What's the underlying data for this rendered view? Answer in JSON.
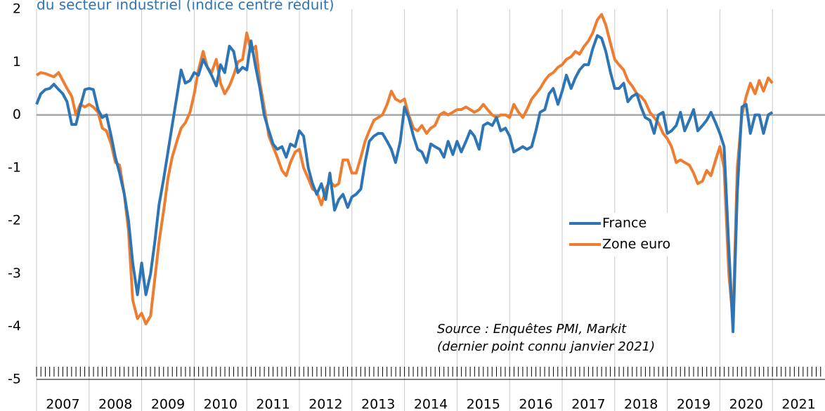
{
  "chart_data": {
    "type": "line",
    "title": "du secteur industriel (indice centré réduit)",
    "annotations": [
      "Source : Enquêtes PMI, Markit",
      "(dernier point connu janvier 2021)"
    ],
    "legend": "inside",
    "grid": true,
    "xlim": [
      2007,
      2022
    ],
    "ylim": [
      -5,
      2
    ],
    "yticks": [
      -5,
      -4,
      -3,
      -2,
      -1,
      0,
      1,
      2
    ],
    "xgrid": [
      2007,
      2008,
      2009,
      2010,
      2011,
      2012,
      2013,
      2014,
      2015,
      2016,
      2017,
      2018,
      2019,
      2020,
      2021
    ],
    "xticks": [
      {
        "value": 2007.5,
        "label": "2007"
      },
      {
        "value": 2008.5,
        "label": "2008"
      },
      {
        "value": 2009.5,
        "label": "2009"
      },
      {
        "value": 2010.5,
        "label": "2010"
      },
      {
        "value": 2011.5,
        "label": "2011"
      },
      {
        "value": 2012.5,
        "label": "2012"
      },
      {
        "value": 2013.5,
        "label": "2013"
      },
      {
        "value": 2014.5,
        "label": "2014"
      },
      {
        "value": 2015.5,
        "label": "2015"
      },
      {
        "value": 2016.5,
        "label": "2016"
      },
      {
        "value": 2017.5,
        "label": "2017"
      },
      {
        "value": 2018.5,
        "label": "2018"
      },
      {
        "value": 2019.5,
        "label": "2019"
      },
      {
        "value": 2020.5,
        "label": "2020"
      },
      {
        "value": 2021.5,
        "label": "2021"
      }
    ],
    "x": [
      2007,
      2007.08,
      2007.17,
      2007.25,
      2007.33,
      2007.42,
      2007.5,
      2007.58,
      2007.67,
      2007.75,
      2007.83,
      2007.92,
      2008,
      2008.08,
      2008.17,
      2008.25,
      2008.33,
      2008.42,
      2008.5,
      2008.58,
      2008.67,
      2008.75,
      2008.83,
      2008.92,
      2009,
      2009.08,
      2009.17,
      2009.25,
      2009.33,
      2009.42,
      2009.5,
      2009.58,
      2009.67,
      2009.75,
      2009.83,
      2009.92,
      2010,
      2010.08,
      2010.17,
      2010.25,
      2010.33,
      2010.42,
      2010.5,
      2010.58,
      2010.67,
      2010.75,
      2010.83,
      2010.92,
      2011,
      2011.08,
      2011.17,
      2011.25,
      2011.33,
      2011.42,
      2011.5,
      2011.58,
      2011.67,
      2011.75,
      2011.83,
      2011.92,
      2012,
      2012.08,
      2012.17,
      2012.25,
      2012.33,
      2012.42,
      2012.5,
      2012.58,
      2012.67,
      2012.75,
      2012.83,
      2012.92,
      2013,
      2013.08,
      2013.17,
      2013.25,
      2013.33,
      2013.42,
      2013.5,
      2013.58,
      2013.67,
      2013.75,
      2013.83,
      2013.92,
      2014,
      2014.08,
      2014.17,
      2014.25,
      2014.33,
      2014.42,
      2014.5,
      2014.58,
      2014.67,
      2014.75,
      2014.83,
      2014.92,
      2015,
      2015.08,
      2015.17,
      2015.25,
      2015.33,
      2015.42,
      2015.5,
      2015.58,
      2015.67,
      2015.75,
      2015.83,
      2015.92,
      2016,
      2016.08,
      2016.17,
      2016.25,
      2016.33,
      2016.42,
      2016.5,
      2016.58,
      2016.67,
      2016.75,
      2016.83,
      2016.92,
      2017,
      2017.08,
      2017.17,
      2017.25,
      2017.33,
      2017.42,
      2017.5,
      2017.58,
      2017.67,
      2017.75,
      2017.83,
      2017.92,
      2018,
      2018.08,
      2018.17,
      2018.25,
      2018.33,
      2018.42,
      2018.5,
      2018.58,
      2018.67,
      2018.75,
      2018.83,
      2018.92,
      2019,
      2019.08,
      2019.17,
      2019.25,
      2019.33,
      2019.42,
      2019.5,
      2019.58,
      2019.67,
      2019.75,
      2019.83,
      2019.92,
      2020,
      2020.08,
      2020.17,
      2020.25,
      2020.33,
      2020.42,
      2020.5,
      2020.58,
      2020.67,
      2020.75,
      2020.83,
      2020.92,
      2021
    ],
    "series": [
      {
        "name": "France",
        "color": "#2e75b6",
        "values": [
          0.2,
          0.4,
          0.48,
          0.5,
          0.58,
          0.48,
          0.4,
          0.25,
          -0.18,
          -0.18,
          0.15,
          0.48,
          0.5,
          0.48,
          0.1,
          -0.05,
          0,
          -0.4,
          -0.8,
          -1.1,
          -1.5,
          -2,
          -2.8,
          -3.4,
          -2.8,
          -3.4,
          -3,
          -2.4,
          -1.7,
          -1.2,
          -0.7,
          -0.2,
          0.35,
          0.85,
          0.6,
          0.65,
          0.8,
          0.75,
          1.05,
          0.9,
          0.75,
          0.55,
          0.95,
          0.8,
          1.3,
          1.2,
          0.8,
          0.9,
          0.85,
          1.4,
          0.9,
          0.5,
          0,
          -0.3,
          -0.55,
          -0.65,
          -0.6,
          -0.8,
          -0.55,
          -0.6,
          -0.3,
          -0.4,
          -1,
          -1.3,
          -1.5,
          -1.3,
          -1.6,
          -1.1,
          -1.8,
          -1.6,
          -1.5,
          -1.75,
          -1.55,
          -1.5,
          -1.4,
          -0.9,
          -0.5,
          -0.4,
          -0.35,
          -0.35,
          -0.5,
          -0.65,
          -0.9,
          -0.5,
          0.15,
          -0.05,
          -0.4,
          -0.65,
          -0.7,
          -0.9,
          -0.55,
          -0.6,
          -0.65,
          -0.8,
          -0.5,
          -0.75,
          -0.5,
          -0.7,
          -0.5,
          -0.3,
          -0.4,
          -0.65,
          -0.2,
          -0.15,
          -0.2,
          -0.05,
          -0.3,
          -0.25,
          -0.4,
          -0.7,
          -0.65,
          -0.6,
          -0.65,
          -0.6,
          -0.3,
          0.05,
          0.1,
          0.4,
          0.5,
          0.2,
          0.45,
          0.75,
          0.5,
          0.7,
          0.85,
          0.95,
          0.95,
          1.25,
          1.5,
          1.45,
          1.2,
          0.8,
          0.5,
          0.5,
          0.6,
          0.25,
          0.35,
          0.4,
          0.15,
          -0.05,
          -0.1,
          -0.35,
          0,
          0.05,
          -0.35,
          -0.3,
          -0.2,
          0.05,
          -0.3,
          -0.1,
          0.1,
          -0.3,
          -0.2,
          -0.1,
          0.05,
          -0.15,
          -0.35,
          -0.6,
          -2.5,
          -4.1,
          -1.5,
          0.15,
          0.2,
          -0.35,
          0,
          0,
          -0.35,
          0,
          0.05
        ]
      },
      {
        "name": "Zone euro",
        "color": "#ed7d31",
        "values": [
          0.75,
          0.8,
          0.78,
          0.75,
          0.72,
          0.8,
          0.65,
          0.5,
          0.35,
          0,
          0.2,
          0.15,
          0.2,
          0.15,
          0.05,
          -0.25,
          -0.3,
          -0.55,
          -0.9,
          -0.95,
          -1.5,
          -2.2,
          -3.5,
          -3.85,
          -3.75,
          -3.95,
          -3.8,
          -3.1,
          -2.4,
          -1.8,
          -1.2,
          -0.8,
          -0.5,
          -0.25,
          -0.15,
          0.05,
          0.4,
          0.85,
          1.2,
          0.9,
          0.8,
          1.05,
          0.6,
          0.4,
          0.55,
          0.75,
          1,
          1.05,
          1.55,
          1.2,
          1.3,
          0.6,
          0.15,
          -0.4,
          -0.6,
          -0.8,
          -1.05,
          -1.15,
          -0.9,
          -0.7,
          -0.65,
          -1,
          -1.2,
          -1.4,
          -1.45,
          -1.7,
          -1.4,
          -1.25,
          -1.35,
          -1.3,
          -0.85,
          -0.85,
          -1.1,
          -1.1,
          -0.8,
          -0.5,
          -0.3,
          -0.1,
          -0.05,
          0,
          0.2,
          0.45,
          0.3,
          0.25,
          0.3,
          0,
          -0.25,
          -0.3,
          -0.2,
          -0.35,
          -0.25,
          -0.2,
          0,
          0.05,
          0,
          0.05,
          0.1,
          0.1,
          0.15,
          0.1,
          0.05,
          0.1,
          0.2,
          0.1,
          0,
          -0.05,
          0,
          0,
          -0.05,
          0.2,
          0.05,
          -0.05,
          0.1,
          0.3,
          0.4,
          0.5,
          0.65,
          0.75,
          0.8,
          0.9,
          0.95,
          1.05,
          1.1,
          1.2,
          1.15,
          1.3,
          1.4,
          1.55,
          1.8,
          1.9,
          1.7,
          1.35,
          1.05,
          0.95,
          0.85,
          0.65,
          0.55,
          0.4,
          0.35,
          0.25,
          0.05,
          -0.05,
          -0.15,
          -0.35,
          -0.45,
          -0.6,
          -0.9,
          -0.85,
          -0.9,
          -0.95,
          -1.1,
          -1.3,
          -1.25,
          -1.05,
          -1.15,
          -0.85,
          -0.6,
          -1,
          -3,
          -3.9,
          -1,
          0,
          0.35,
          0.6,
          0.4,
          0.65,
          0.45,
          0.7,
          0.6
        ]
      }
    ]
  }
}
